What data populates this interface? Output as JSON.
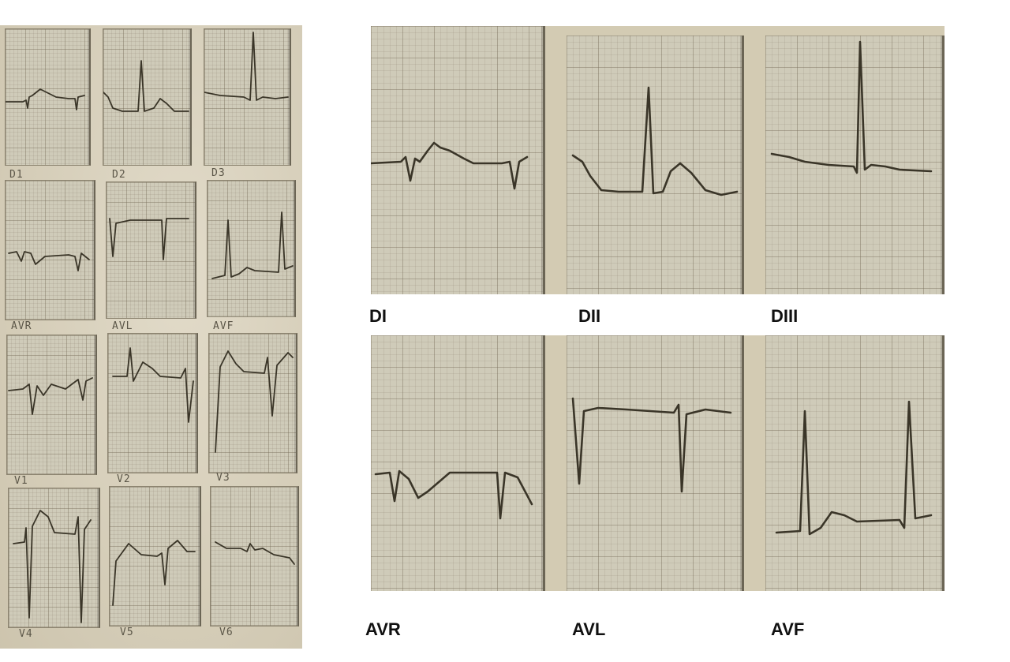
{
  "left_labels": [
    "D1",
    "D2",
    "D3",
    "AVR",
    "AVL",
    "AVF",
    "V1",
    "V2",
    "V3",
    "V4",
    "V5",
    "V6"
  ],
  "right_labels": {
    "top": [
      "DI",
      "DII",
      "DIII"
    ],
    "bottom": [
      "AVR",
      "AVL",
      "AVF"
    ]
  }
}
